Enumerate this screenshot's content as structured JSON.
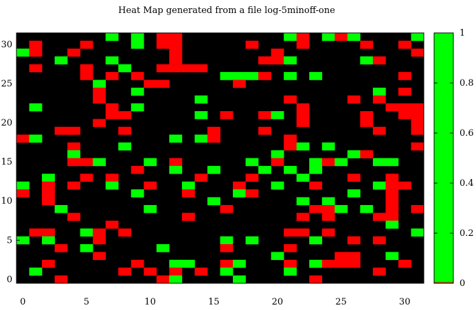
{
  "chart_data": {
    "type": "heatmap",
    "title": "Heat Map generated from a file log-5minoff-one",
    "xlabel": "",
    "ylabel": "",
    "xlim": [
      0,
      31
    ],
    "ylim": [
      0,
      31
    ],
    "x_ticks": [
      0,
      5,
      10,
      15,
      20,
      25,
      30
    ],
    "y_ticks": [
      0,
      5,
      10,
      15,
      20,
      25,
      30
    ],
    "colorbar": {
      "range": [
        0,
        1
      ],
      "ticks": [
        0,
        0.2,
        0.4,
        0.6,
        0.8,
        1
      ]
    },
    "colors": {
      "background_value": "#000000",
      "low": "#ff0000",
      "high": "#00ff00"
    },
    "value_legend": {
      "green": 1,
      "red": 0,
      "black": "no data"
    },
    "cells": [
      [
        7,
        31,
        1
      ],
      [
        9,
        31,
        1
      ],
      [
        11,
        31,
        0
      ],
      [
        12,
        31,
        0
      ],
      [
        21,
        31,
        1
      ],
      [
        22,
        31,
        0
      ],
      [
        24,
        31,
        1
      ],
      [
        25,
        31,
        0
      ],
      [
        26,
        31,
        1
      ],
      [
        31,
        31,
        1
      ],
      [
        1,
        30,
        0
      ],
      [
        5,
        30,
        0
      ],
      [
        9,
        30,
        1
      ],
      [
        11,
        30,
        0
      ],
      [
        12,
        30,
        0
      ],
      [
        18,
        30,
        0
      ],
      [
        22,
        30,
        0
      ],
      [
        27,
        30,
        0
      ],
      [
        30,
        30,
        0
      ],
      [
        0,
        29,
        1
      ],
      [
        1,
        29,
        0
      ],
      [
        4,
        29,
        0
      ],
      [
        12,
        29,
        0
      ],
      [
        20,
        29,
        0
      ],
      [
        31,
        29,
        0
      ],
      [
        3,
        28,
        1
      ],
      [
        7,
        28,
        1
      ],
      [
        12,
        28,
        0
      ],
      [
        19,
        28,
        0
      ],
      [
        20,
        28,
        0
      ],
      [
        21,
        28,
        1
      ],
      [
        27,
        28,
        1
      ],
      [
        28,
        28,
        0
      ],
      [
        1,
        27,
        0
      ],
      [
        5,
        27,
        0
      ],
      [
        8,
        27,
        1
      ],
      [
        11,
        27,
        0
      ],
      [
        12,
        27,
        0
      ],
      [
        13,
        27,
        0
      ],
      [
        14,
        27,
        0
      ],
      [
        5,
        26,
        0
      ],
      [
        7,
        26,
        0
      ],
      [
        9,
        26,
        0
      ],
      [
        16,
        26,
        1
      ],
      [
        17,
        26,
        1
      ],
      [
        18,
        26,
        1
      ],
      [
        19,
        26,
        0
      ],
      [
        21,
        26,
        1
      ],
      [
        23,
        26,
        1
      ],
      [
        30,
        26,
        0
      ],
      [
        6,
        25,
        1
      ],
      [
        10,
        25,
        0
      ],
      [
        11,
        25,
        0
      ],
      [
        17,
        25,
        0
      ],
      [
        6,
        24,
        0
      ],
      [
        9,
        24,
        1
      ],
      [
        28,
        24,
        1
      ],
      [
        30,
        24,
        0
      ],
      [
        6,
        23,
        0
      ],
      [
        14,
        23,
        1
      ],
      [
        21,
        23,
        0
      ],
      [
        26,
        23,
        0
      ],
      [
        28,
        23,
        0
      ],
      [
        1,
        22,
        1
      ],
      [
        7,
        22,
        0
      ],
      [
        9,
        22,
        1
      ],
      [
        22,
        22,
        0
      ],
      [
        29,
        22,
        0
      ],
      [
        30,
        22,
        0
      ],
      [
        31,
        22,
        0
      ],
      [
        7,
        21,
        0
      ],
      [
        8,
        21,
        0
      ],
      [
        14,
        21,
        1
      ],
      [
        16,
        21,
        0
      ],
      [
        19,
        21,
        0
      ],
      [
        20,
        21,
        1
      ],
      [
        22,
        21,
        0
      ],
      [
        27,
        21,
        0
      ],
      [
        30,
        21,
        0
      ],
      [
        31,
        21,
        0
      ],
      [
        6,
        20,
        0
      ],
      [
        22,
        20,
        0
      ],
      [
        27,
        20,
        0
      ],
      [
        31,
        20,
        0
      ],
      [
        3,
        19,
        0
      ],
      [
        4,
        19,
        0
      ],
      [
        8,
        19,
        0
      ],
      [
        15,
        19,
        0
      ],
      [
        19,
        19,
        0
      ],
      [
        28,
        19,
        0
      ],
      [
        31,
        19,
        0
      ],
      [
        0,
        18,
        0
      ],
      [
        1,
        18,
        1
      ],
      [
        12,
        18,
        1
      ],
      [
        14,
        18,
        1
      ],
      [
        15,
        18,
        0
      ],
      [
        21,
        18,
        0
      ],
      [
        4,
        17,
        0
      ],
      [
        8,
        17,
        1
      ],
      [
        21,
        17,
        0
      ],
      [
        22,
        17,
        1
      ],
      [
        24,
        17,
        1
      ],
      [
        31,
        17,
        0
      ],
      [
        4,
        16,
        1
      ],
      [
        20,
        16,
        1
      ],
      [
        26,
        16,
        1
      ],
      [
        27,
        16,
        0
      ],
      [
        4,
        15,
        0
      ],
      [
        5,
        15,
        0
      ],
      [
        6,
        15,
        1
      ],
      [
        10,
        15,
        1
      ],
      [
        12,
        15,
        0
      ],
      [
        18,
        15,
        1
      ],
      [
        20,
        15,
        0
      ],
      [
        23,
        15,
        1
      ],
      [
        24,
        15,
        0
      ],
      [
        25,
        15,
        1
      ],
      [
        28,
        15,
        1
      ],
      [
        29,
        15,
        1
      ],
      [
        9,
        14,
        0
      ],
      [
        12,
        14,
        1
      ],
      [
        15,
        14,
        1
      ],
      [
        19,
        14,
        1
      ],
      [
        21,
        14,
        1
      ],
      [
        23,
        14,
        1
      ],
      [
        2,
        13,
        1
      ],
      [
        5,
        13,
        0
      ],
      [
        7,
        13,
        0
      ],
      [
        14,
        13,
        0
      ],
      [
        18,
        13,
        0
      ],
      [
        22,
        13,
        1
      ],
      [
        26,
        13,
        0
      ],
      [
        29,
        13,
        0
      ],
      [
        0,
        12,
        1
      ],
      [
        2,
        12,
        0
      ],
      [
        4,
        12,
        0
      ],
      [
        7,
        12,
        1
      ],
      [
        10,
        12,
        0
      ],
      [
        13,
        12,
        1
      ],
      [
        17,
        12,
        0
      ],
      [
        20,
        12,
        1
      ],
      [
        23,
        12,
        0
      ],
      [
        28,
        12,
        1
      ],
      [
        29,
        12,
        0
      ],
      [
        30,
        12,
        0
      ],
      [
        0,
        11,
        0
      ],
      [
        2,
        11,
        0
      ],
      [
        9,
        11,
        1
      ],
      [
        13,
        11,
        0
      ],
      [
        17,
        11,
        1
      ],
      [
        18,
        11,
        0
      ],
      [
        26,
        11,
        1
      ],
      [
        29,
        11,
        0
      ],
      [
        2,
        10,
        0
      ],
      [
        15,
        10,
        1
      ],
      [
        22,
        10,
        1
      ],
      [
        24,
        10,
        1
      ],
      [
        29,
        10,
        0
      ],
      [
        3,
        9,
        1
      ],
      [
        10,
        9,
        1
      ],
      [
        16,
        9,
        0
      ],
      [
        23,
        9,
        0
      ],
      [
        24,
        9,
        0
      ],
      [
        25,
        9,
        1
      ],
      [
        27,
        9,
        1
      ],
      [
        29,
        9,
        0
      ],
      [
        31,
        9,
        0
      ],
      [
        4,
        8,
        0
      ],
      [
        13,
        8,
        0
      ],
      [
        22,
        8,
        0
      ],
      [
        24,
        8,
        0
      ],
      [
        28,
        8,
        0
      ],
      [
        29,
        8,
        0
      ],
      [
        7,
        7,
        0
      ],
      [
        29,
        7,
        1
      ],
      [
        1,
        6,
        0
      ],
      [
        2,
        6,
        0
      ],
      [
        5,
        6,
        1
      ],
      [
        6,
        6,
        0
      ],
      [
        8,
        6,
        0
      ],
      [
        21,
        6,
        0
      ],
      [
        22,
        6,
        0
      ],
      [
        24,
        6,
        0
      ],
      [
        31,
        6,
        1
      ],
      [
        0,
        5,
        1
      ],
      [
        2,
        5,
        1
      ],
      [
        6,
        5,
        0
      ],
      [
        16,
        5,
        1
      ],
      [
        18,
        5,
        1
      ],
      [
        23,
        5,
        1
      ],
      [
        26,
        5,
        0
      ],
      [
        28,
        5,
        0
      ],
      [
        3,
        4,
        0
      ],
      [
        5,
        4,
        1
      ],
      [
        11,
        4,
        1
      ],
      [
        16,
        4,
        0
      ],
      [
        21,
        4,
        0
      ],
      [
        6,
        3,
        0
      ],
      [
        20,
        3,
        1
      ],
      [
        25,
        3,
        0
      ],
      [
        26,
        3,
        0
      ],
      [
        29,
        3,
        1
      ],
      [
        2,
        2,
        0
      ],
      [
        9,
        2,
        0
      ],
      [
        12,
        2,
        1
      ],
      [
        13,
        2,
        1
      ],
      [
        16,
        2,
        0
      ],
      [
        17,
        2,
        1
      ],
      [
        21,
        2,
        0
      ],
      [
        23,
        2,
        1
      ],
      [
        24,
        2,
        0
      ],
      [
        25,
        2,
        0
      ],
      [
        26,
        2,
        0
      ],
      [
        30,
        2,
        0
      ],
      [
        1,
        1,
        1
      ],
      [
        8,
        1,
        0
      ],
      [
        10,
        1,
        0
      ],
      [
        12,
        1,
        0
      ],
      [
        14,
        1,
        0
      ],
      [
        16,
        1,
        1
      ],
      [
        21,
        1,
        1
      ],
      [
        28,
        1,
        0
      ],
      [
        3,
        0,
        0
      ],
      [
        11,
        0,
        0
      ],
      [
        12,
        0,
        1
      ],
      [
        17,
        0,
        1
      ],
      [
        23,
        0,
        0
      ]
    ]
  }
}
